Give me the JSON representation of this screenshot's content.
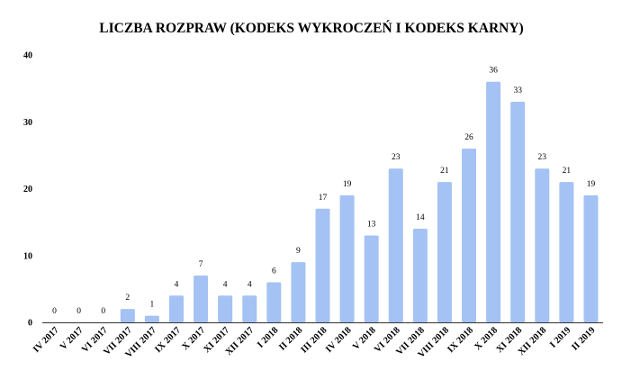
{
  "chart_data": {
    "type": "bar",
    "title": "LICZBA ROZPRAW (KODEKS WYKROCZEŃ I KODEKS KARNY)",
    "xlabel": "",
    "ylabel": "",
    "ylim": [
      0,
      40
    ],
    "yticks": [
      0,
      10,
      20,
      30,
      40
    ],
    "grid": false,
    "legend": "none",
    "bar_color": "#a4c2f4",
    "categories": [
      "IV 2017",
      "V 2017",
      "VI 2017",
      "VII 2017",
      "VIII 2017",
      "IX 2017",
      "X 2017",
      "XI 2017",
      "XII 2017",
      "I 2018",
      "II 2018",
      "III 2018",
      "IV 2018",
      "V 2018",
      "VI 2018",
      "VII 2018",
      "VIII 2018",
      "IX 2018",
      "X 2018",
      "XI 2018",
      "XII 2018",
      "I 2019",
      "II 2019"
    ],
    "values": [
      0,
      0,
      0,
      2,
      1,
      4,
      7,
      4,
      4,
      6,
      9,
      17,
      19,
      13,
      23,
      14,
      21,
      26,
      36,
      33,
      23,
      21,
      19
    ]
  }
}
